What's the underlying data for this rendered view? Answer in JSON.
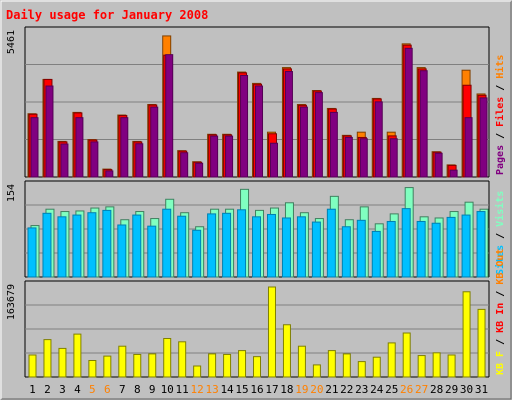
{
  "chart_data": {
    "type": "bar",
    "title": "Daily usage for January 2008",
    "categories": [
      "1",
      "2",
      "3",
      "4",
      "5",
      "6",
      "7",
      "8",
      "9",
      "10",
      "11",
      "12",
      "13",
      "14",
      "15",
      "16",
      "17",
      "18",
      "19",
      "20",
      "21",
      "22",
      "23",
      "24",
      "25",
      "26",
      "27",
      "28",
      "29",
      "30",
      "31"
    ],
    "weekend_days": [
      "5",
      "6",
      "12",
      "13",
      "19",
      "20",
      "26",
      "27"
    ],
    "panels": [
      {
        "name": "hits-files-pages",
        "ymax_label": "5461",
        "ymax": 5461,
        "right_labels": [
          "Pages",
          "Files",
          "Hits"
        ],
        "series": [
          {
            "name": "Hits",
            "values": [
              2400,
              3700,
              1350,
              2450,
              1420,
              300,
              2350,
              1350,
              2750,
              5350,
              1000,
              580,
              1620,
              1620,
              3980,
              3550,
              1700,
              4150,
              2750,
              3280,
              2600,
              1580,
              1700,
              2980,
              1700,
              5050,
              4150,
              960,
              460,
              4050,
              3150
            ]
          },
          {
            "name": "Files",
            "values": [
              2380,
              3700,
              1330,
              2430,
              1400,
              280,
              2330,
              1330,
              2730,
              4620,
              980,
              560,
              1600,
              1600,
              3950,
              3520,
              1640,
              4100,
              2720,
              3260,
              2580,
              1560,
              1500,
              2960,
              1560,
              5000,
              4100,
              940,
              440,
              3480,
              3100
            ]
          },
          {
            "name": "Pages",
            "values": [
              2250,
              3450,
              1250,
              2250,
              1330,
              230,
              2250,
              1260,
              2650,
              4640,
              920,
              520,
              1550,
              1550,
              3850,
              3450,
              1280,
              4000,
              2650,
              3200,
              2450,
              1500,
              1450,
              2850,
              1450,
              4880,
              4030,
              900,
              260,
              2250,
              3000
            ]
          }
        ]
      },
      {
        "name": "visits-sites",
        "ymax_label": "154",
        "ymax": 154,
        "right_labels": [
          "Sites",
          "Visits"
        ],
        "series": [
          {
            "name": "Visits",
            "values": [
              88,
              116,
              112,
              113,
              118,
              120,
              98,
              112,
              100,
              133,
              110,
              86,
              116,
              116,
              150,
              114,
              118,
              127,
              110,
              100,
              138,
              98,
              120,
              91,
              108,
              153,
              103,
              101,
              112,
              128,
              116
            ]
          },
          {
            "name": "Sites",
            "values": [
              84,
              109,
              103,
              106,
              110,
              114,
              89,
              106,
              87,
              116,
              104,
              80,
              108,
              109,
              115,
              103,
              107,
              101,
              103,
              94,
              116,
              86,
              97,
              78,
              95,
              117,
              95,
              92,
              102,
              106,
              112
            ]
          }
        ]
      },
      {
        "name": "kbytes",
        "ymax_label": "163679",
        "ymax": 163679,
        "right_labels": [
          "KB F",
          "KB In",
          "KB Out"
        ],
        "series": [
          {
            "name": "KBytes",
            "values": [
              40000,
              68000,
              52000,
              78000,
              30000,
              38000,
              56000,
              41000,
              42000,
              70000,
              64000,
              20000,
              42000,
              41000,
              48000,
              37000,
              163679,
              95000,
              56000,
              22000,
              48000,
              42000,
              28000,
              36000,
              62000,
              80000,
              39000,
              44000,
              40000,
              155000,
              123000
            ]
          }
        ]
      }
    ]
  },
  "colors": {
    "background": "#c0c0c0",
    "title": "#ff0000",
    "weekday_label": "#000000",
    "weekend_label": "#ff8000",
    "hits": "#ff8000",
    "files": "#ff0000",
    "pages": "#800080",
    "pages_edge": "#550055",
    "visits": "#80ffc0",
    "sites": "#00c0ff",
    "sites_edge": "#0080b0",
    "kbytes": "#ffff00",
    "kbytes_edge": "#808000",
    "gridline": "#808080",
    "separator": "#000000",
    "kb_in": "#ff0000",
    "kb_out": "#ff8000"
  }
}
